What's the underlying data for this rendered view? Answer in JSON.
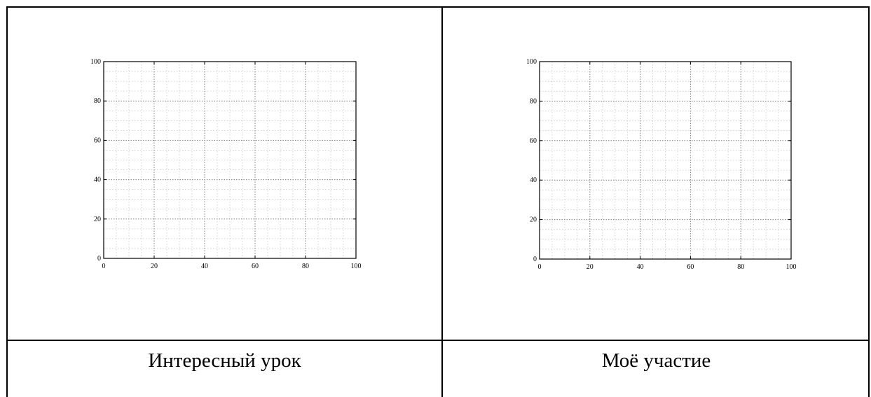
{
  "chart_data": [
    {
      "type": "line",
      "title": "",
      "xlabel": "",
      "ylabel": "",
      "xlim": [
        0,
        100
      ],
      "ylim": [
        0,
        100
      ],
      "x_ticks": [
        "0",
        "20",
        "40",
        "60",
        "80",
        "100"
      ],
      "y_ticks": [
        "0",
        "20",
        "40",
        "60",
        "80",
        "100"
      ],
      "grid": "major dotted every 20, minor dotted every 5",
      "series": []
    },
    {
      "type": "line",
      "title": "",
      "xlabel": "",
      "ylabel": "",
      "xlim": [
        0,
        100
      ],
      "ylim": [
        0,
        100
      ],
      "x_ticks": [
        "0",
        "20",
        "40",
        "60",
        "80",
        "100"
      ],
      "y_ticks": [
        "0",
        "20",
        "40",
        "60",
        "80",
        "100"
      ],
      "grid": "major dotted every 20, minor dotted every 5",
      "series": []
    }
  ],
  "captions": {
    "left": "Интересный урок",
    "right": "Моё участие"
  },
  "colors": {
    "border": "#000000",
    "major_grid": "#7f7f7f",
    "minor_grid": "#c8c8c8"
  }
}
